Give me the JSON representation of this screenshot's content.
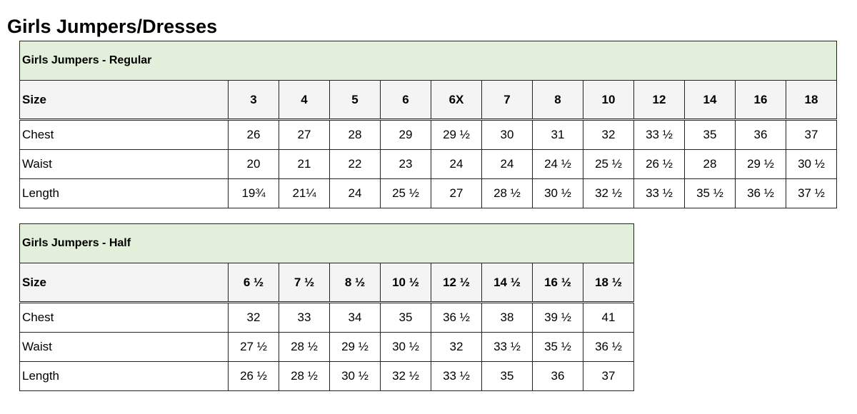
{
  "page_title": "Girls Jumpers/Dresses",
  "tables": [
    {
      "title": "Girls Jumpers - Regular",
      "header_label": "Size",
      "sizes": [
        "3",
        "4",
        "5",
        "6",
        "6X",
        "7",
        "8",
        "10",
        "12",
        "14",
        "16",
        "18"
      ],
      "rows": [
        {
          "label": "Chest",
          "values": [
            "26",
            "27",
            "28",
            "29",
            "29 ½",
            "30",
            "31",
            "32",
            "33 ½",
            "35",
            "36",
            "37"
          ]
        },
        {
          "label": "Waist",
          "values": [
            "20",
            "21",
            "22",
            "23",
            "24",
            "24",
            "24 ½",
            "25 ½",
            "26 ½",
            "28",
            "29 ½",
            "30 ½"
          ]
        },
        {
          "label": "Length",
          "values": [
            "19¾",
            "21¼",
            "24",
            "25 ½",
            "27",
            "28 ½",
            "30 ½",
            "32 ½",
            "33 ½",
            "35 ½",
            "36 ½",
            "37 ½"
          ]
        }
      ]
    },
    {
      "title": "Girls Jumpers - Half",
      "header_label": "Size",
      "sizes": [
        "6 ½",
        "7 ½",
        "8 ½",
        "10 ½",
        "12 ½",
        "14 ½",
        "16 ½",
        "18 ½"
      ],
      "rows": [
        {
          "label": "Chest",
          "values": [
            "32",
            "33",
            "34",
            "35",
            "36 ½",
            "38",
            "39 ½",
            "41"
          ]
        },
        {
          "label": "Waist",
          "values": [
            "27 ½",
            "28 ½",
            "29 ½",
            "30 ½",
            "32",
            "33 ½",
            "35 ½",
            "36 ½"
          ]
        },
        {
          "label": "Length",
          "values": [
            "26 ½",
            "28 ½",
            "30 ½",
            "32 ½",
            "33 ½",
            "35",
            "36",
            "37"
          ]
        }
      ]
    }
  ],
  "colors": {
    "title_bg": "#e2efda",
    "header_bg": "#f4f4f4",
    "border": "#222222"
  }
}
